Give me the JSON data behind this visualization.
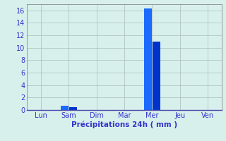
{
  "days": [
    "Lun",
    "Sam",
    "Dim",
    "Mar",
    "Mer",
    "Jeu",
    "Ven"
  ],
  "values_per_day": [
    [
      0
    ],
    [
      0.7,
      0.5
    ],
    [
      0
    ],
    [
      0
    ],
    [
      16.3,
      11.0
    ],
    [
      0
    ],
    [
      0
    ]
  ],
  "bar_color_left": "#1a6aff",
  "bar_color_right": "#0033cc",
  "bg_color": "#d8f0ec",
  "grid_color": "#aabcb8",
  "axis_color": "#888888",
  "xlabel": "Précipitations 24h ( mm )",
  "xlabel_color": "#3333cc",
  "tick_color": "#3333cc",
  "ylim": [
    0,
    17
  ],
  "yticks": [
    0,
    2,
    4,
    6,
    8,
    10,
    12,
    14,
    16
  ],
  "bar_width": 0.28,
  "tick_fontsize": 7,
  "xlabel_fontsize": 7.5
}
